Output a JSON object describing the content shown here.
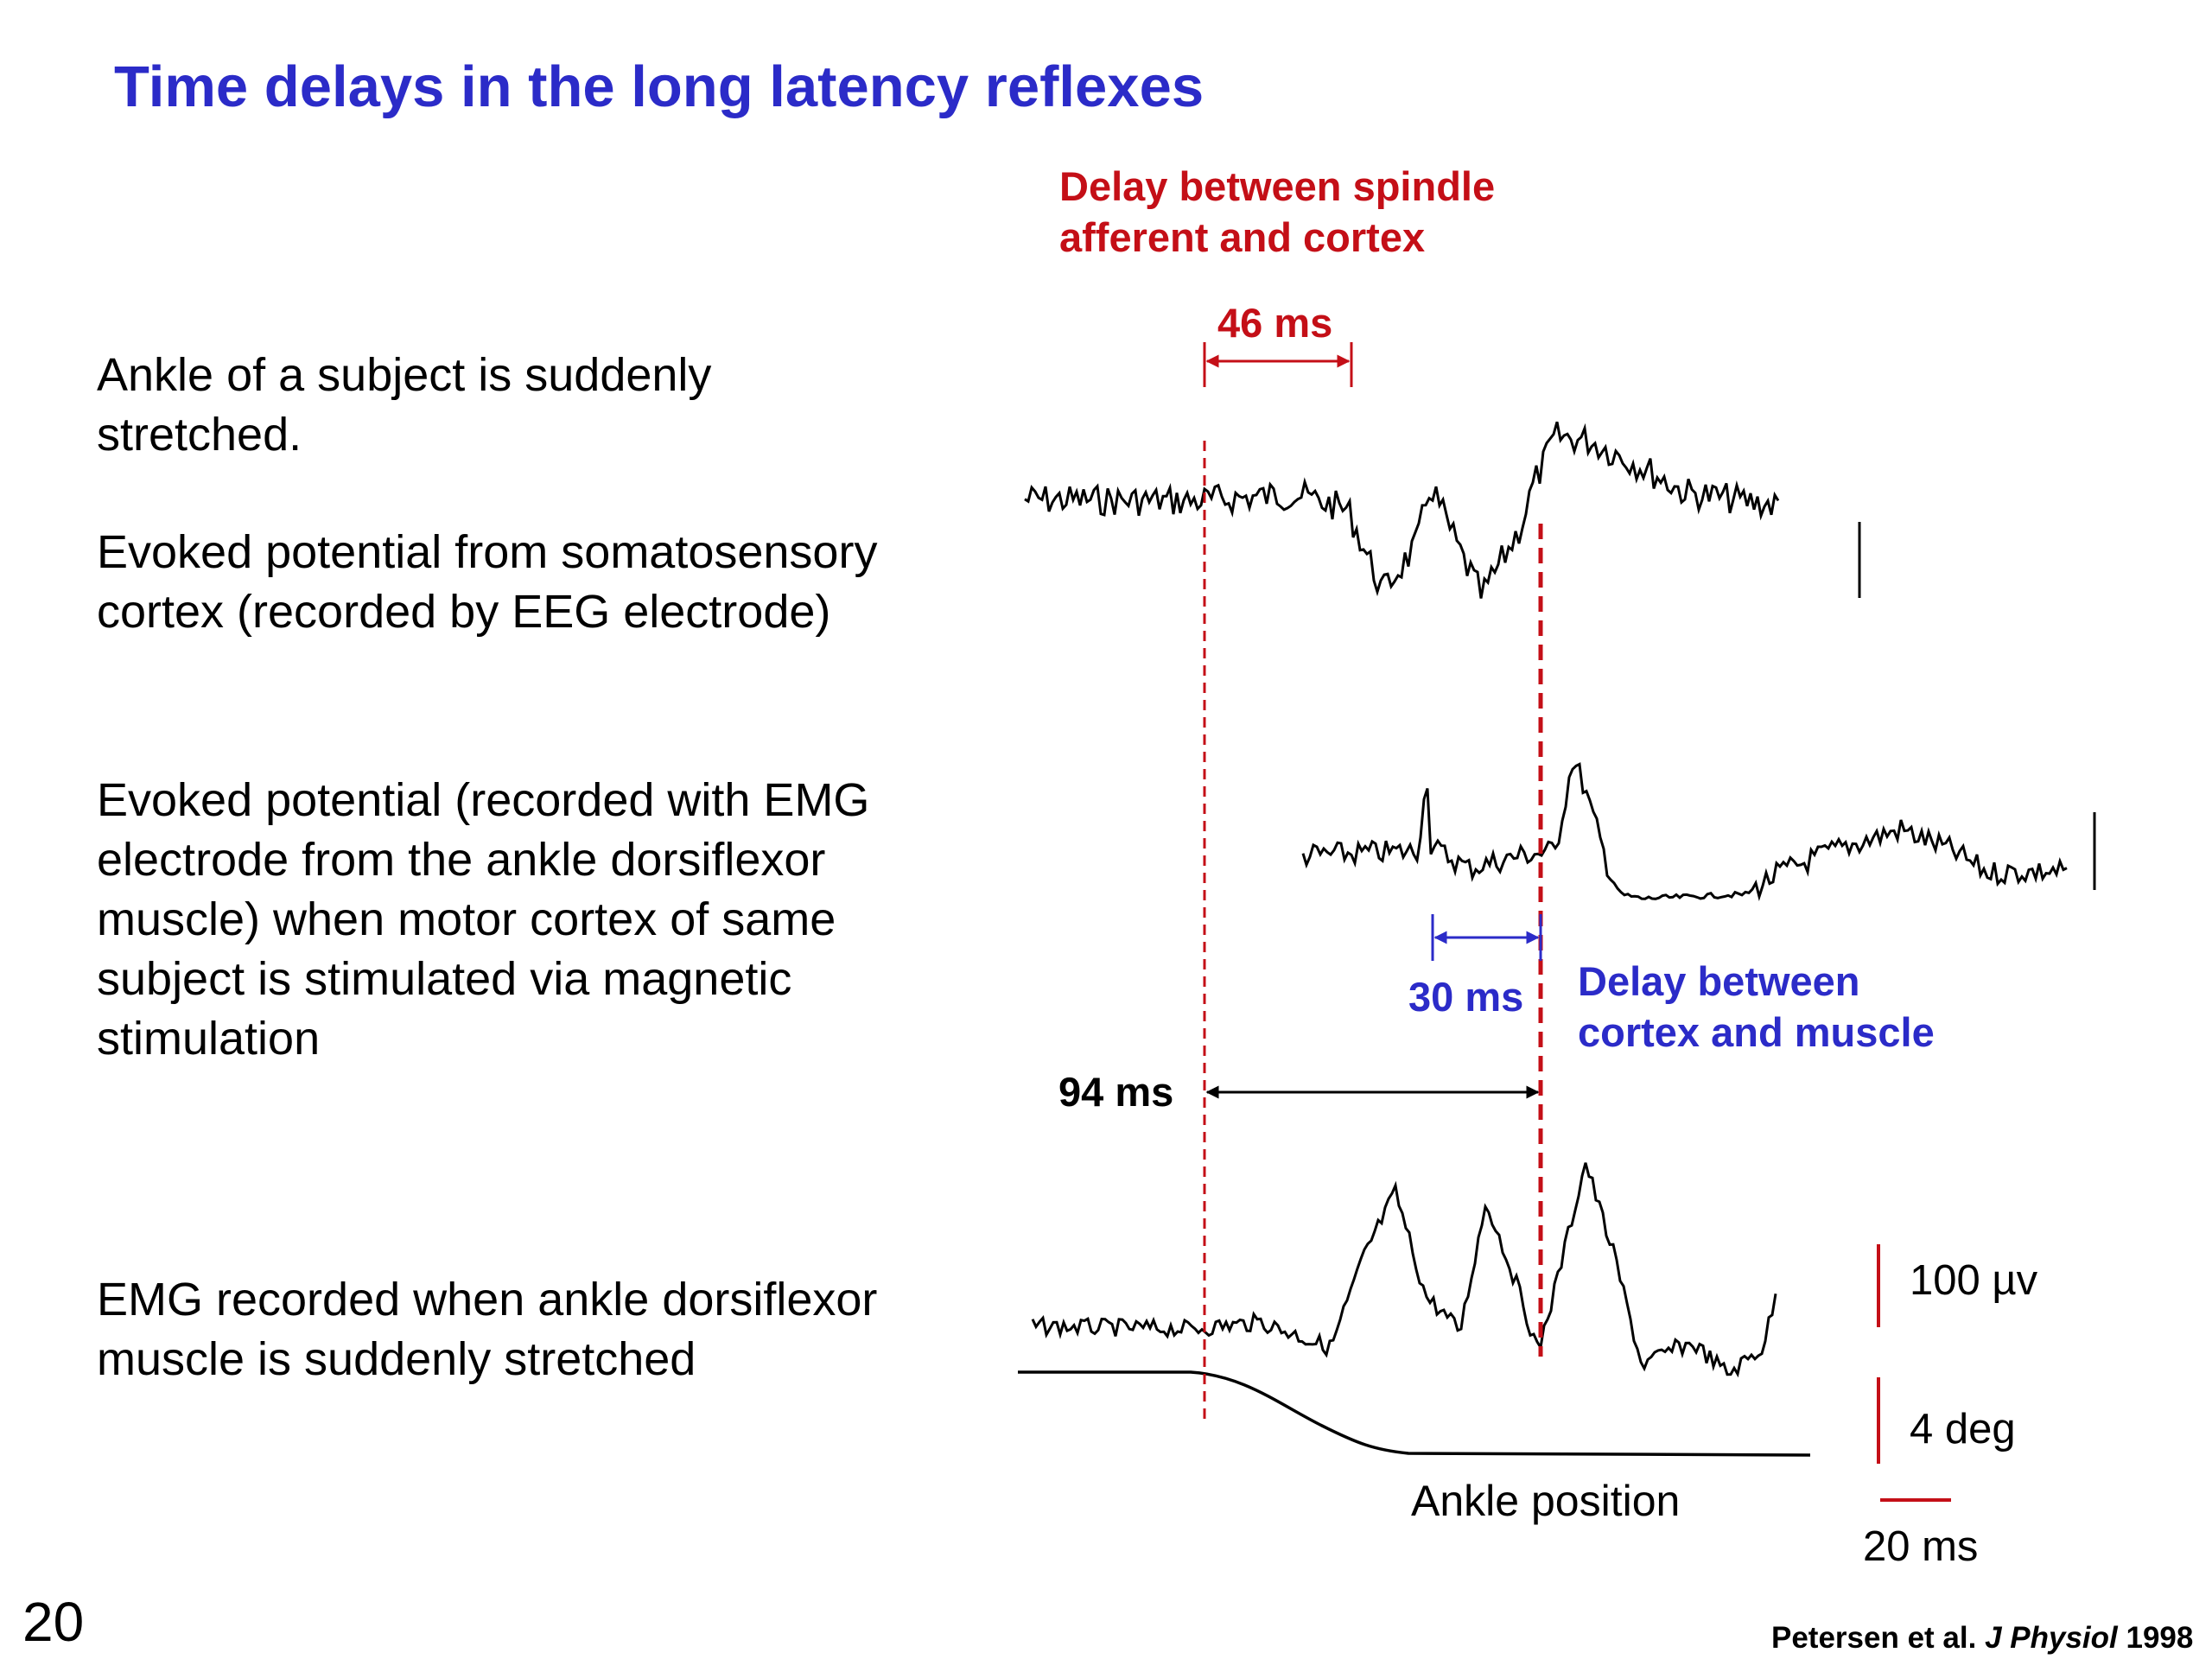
{
  "slide": {
    "title": "Time delays in the long latency reflexes",
    "page_number": "20",
    "citation": {
      "authors": "Petersen et al.",
      "journal": "J Physiol",
      "year": "1998"
    }
  },
  "descriptions": {
    "ankle_stretch": [
      "Ankle of a subject is suddenly",
      "stretched."
    ],
    "eeg": [
      "Evoked potential from somatosensory",
      "cortex (recorded by EEG electrode)"
    ],
    "emg_mep": [
      "Evoked potential (recorded with EMG",
      "electrode from the ankle dorsiflexor",
      "muscle) when motor cortex of same",
      "subject is stimulated via magnetic",
      "stimulation"
    ],
    "emg_stretch": [
      "EMG recorded when ankle dorsiflexor",
      "muscle is suddenly stretched"
    ]
  },
  "annotations": {
    "spindle_delay": [
      "Delay between spindle",
      "afferent and cortex"
    ],
    "spindle_delay_value": "46 ms",
    "cortex_delay": [
      "Delay between",
      "cortex and muscle"
    ],
    "cortex_delay_value": "30 ms",
    "total_delay_value": "94 ms"
  },
  "scale_bars": {
    "amplitude": "100 µv",
    "angle": "4 deg",
    "time": "20 ms"
  },
  "ankle_label": "Ankle position",
  "colors": {
    "title_blue": "#2b2bc8",
    "annotation_red": "#c40f17",
    "annotation_blue": "#2b2bc8",
    "trace_black": "#000000"
  }
}
